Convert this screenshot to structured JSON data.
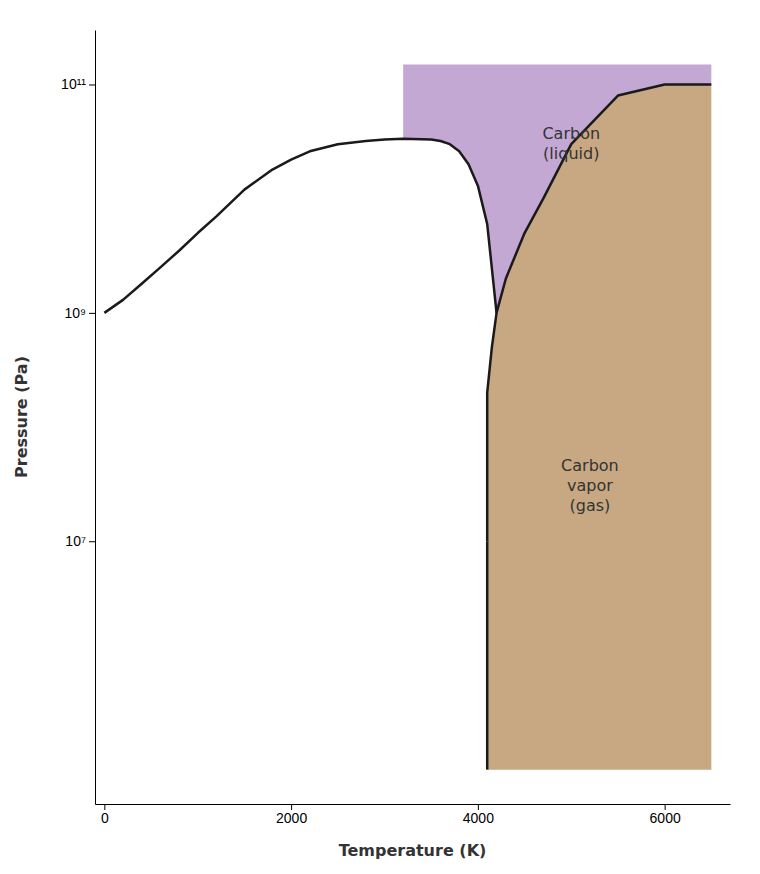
{
  "chart_data": {
    "type": "line",
    "xlabel": "Temperature (K)",
    "ylabel": "Pressure (Pa)",
    "log": "y",
    "xlim": [
      -100,
      6700
    ],
    "ylim": [
      50000,
      300000000000
    ],
    "xticks": [
      0,
      2000,
      4000,
      6000
    ],
    "yticks": [
      {
        "value": 10000000,
        "label": "10⁷"
      },
      {
        "value": 1000000000,
        "label": "10⁹"
      },
      {
        "value": 100000000000,
        "label": "10¹¹"
      }
    ],
    "series": [
      {
        "type": "area",
        "color": "#c4a8d4",
        "x": [
          3200,
          3500,
          3600,
          3700,
          3800,
          3900,
          4000,
          4100,
          4200,
          4100,
          4150,
          4200,
          4300,
          4500,
          4700,
          5000,
          5500,
          6000,
          6500,
          6500,
          6500,
          3200
        ],
        "values": [
          33500000000,
          33000000000,
          32000000000,
          30000000000,
          26000000000,
          20000000000,
          13000000000,
          6000000000,
          1000000000,
          200000000,
          500000000,
          1000000000,
          2000000000,
          5000000000,
          10000000000,
          30000000000,
          80000000000,
          100000000000,
          100000000000,
          150000000000,
          150000000000,
          150000000000
        ]
      },
      {
        "type": "area",
        "color": "#c8a882",
        "x": [
          4100,
          6500,
          6500,
          6500,
          6000,
          5500,
          5000,
          4700,
          4500,
          4300,
          4200,
          4150,
          4100,
          4100
        ],
        "values": [
          100000,
          100000,
          100000000000,
          100000000000,
          100000000000,
          80000000000,
          30000000000,
          10000000000,
          5000000000,
          2000000000,
          1000000000,
          500000000,
          200000000,
          10000000
        ]
      },
      {
        "type": "line",
        "color": "#1a1a1a",
        "x": [
          0,
          200,
          400,
          600,
          800,
          1000,
          1200,
          1500,
          1800,
          2000,
          2200,
          2500,
          2800,
          3000,
          3200,
          3500,
          3600,
          3700,
          3800,
          3900,
          4000,
          4100,
          4200
        ],
        "values": [
          1000000000,
          1300000000,
          1800000000,
          2500000000,
          3500000000,
          5000000000,
          7000000000,
          12000000000,
          18000000000,
          22000000000,
          26000000000,
          30000000000,
          32000000000,
          33000000000,
          33500000000,
          33000000000,
          32000000000,
          30000000000,
          26000000000,
          20000000000,
          13000000000,
          6000000000,
          1000000000
        ]
      },
      {
        "type": "line",
        "color": "#1a1a1a",
        "x": [
          4100,
          4100,
          4150,
          4200,
          4300,
          4500,
          4700,
          5000,
          5500,
          6000,
          6500
        ],
        "values": [
          10000000,
          200000000,
          500000000,
          1000000000,
          2000000000,
          5000000000,
          10000000000,
          30000000000,
          80000000000,
          100000000000,
          100000000000
        ]
      },
      {
        "type": "line",
        "color": "#1a1a1a",
        "x": [
          4100,
          4100
        ],
        "values": [
          100000,
          10000000
        ]
      }
    ],
    "annotations": [
      {
        "text": "Carbon\n(liquid)",
        "x": 5000,
        "y": 30000000000
      },
      {
        "text": "Carbon\nvapor\n(gas)",
        "x": 5200,
        "y": 30000000
      }
    ]
  }
}
